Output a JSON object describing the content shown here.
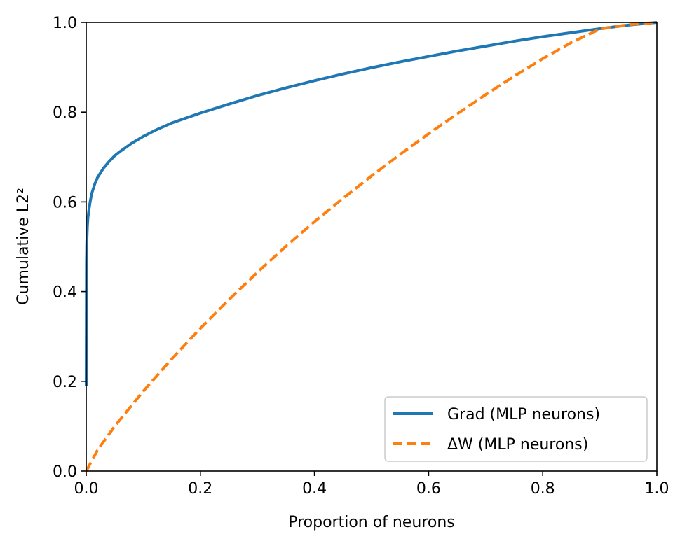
{
  "chart_data": {
    "type": "line",
    "xlabel": "Proportion of neurons",
    "ylabel": "Cumulative L2²",
    "xlim": [
      0.0,
      1.0
    ],
    "ylim": [
      0.0,
      1.0
    ],
    "x_ticks": [
      "0.0",
      "0.2",
      "0.4",
      "0.6",
      "0.8",
      "1.0"
    ],
    "y_ticks": [
      "0.0",
      "0.2",
      "0.4",
      "0.6",
      "0.8",
      "1.0"
    ],
    "grid": false,
    "legend_position": "lower-right",
    "series": [
      {
        "name": "Grad (MLP neurons)",
        "color": "#1f77b4",
        "line_style": "solid",
        "x": [
          0.0,
          0.0005,
          0.001,
          0.002,
          0.003,
          0.005,
          0.0075,
          0.01,
          0.015,
          0.02,
          0.03,
          0.04,
          0.05,
          0.06,
          0.08,
          0.1,
          0.12,
          0.15,
          0.2,
          0.25,
          0.3,
          0.35,
          0.4,
          0.45,
          0.5,
          0.55,
          0.6,
          0.65,
          0.7,
          0.75,
          0.8,
          0.85,
          0.9,
          0.95,
          1.0
        ],
        "y": [
          0.19,
          0.46,
          0.51,
          0.545,
          0.565,
          0.585,
          0.605,
          0.62,
          0.64,
          0.655,
          0.675,
          0.69,
          0.703,
          0.713,
          0.731,
          0.746,
          0.759,
          0.776,
          0.798,
          0.818,
          0.837,
          0.854,
          0.87,
          0.885,
          0.899,
          0.912,
          0.924,
          0.936,
          0.947,
          0.958,
          0.968,
          0.977,
          0.986,
          0.994,
          1.0
        ]
      },
      {
        "name": "ΔW (MLP neurons)",
        "color": "#ff7f0e",
        "line_style": "dashed",
        "x": [
          0.0,
          0.02,
          0.05,
          0.1,
          0.15,
          0.2,
          0.25,
          0.3,
          0.35,
          0.4,
          0.45,
          0.5,
          0.55,
          0.6,
          0.65,
          0.7,
          0.75,
          0.8,
          0.85,
          0.9,
          0.95,
          1.0
        ],
        "y": [
          0.0,
          0.047,
          0.1,
          0.178,
          0.25,
          0.318,
          0.382,
          0.443,
          0.501,
          0.556,
          0.608,
          0.658,
          0.706,
          0.752,
          0.796,
          0.839,
          0.88,
          0.919,
          0.955,
          0.985,
          0.995,
          1.0
        ]
      }
    ]
  }
}
